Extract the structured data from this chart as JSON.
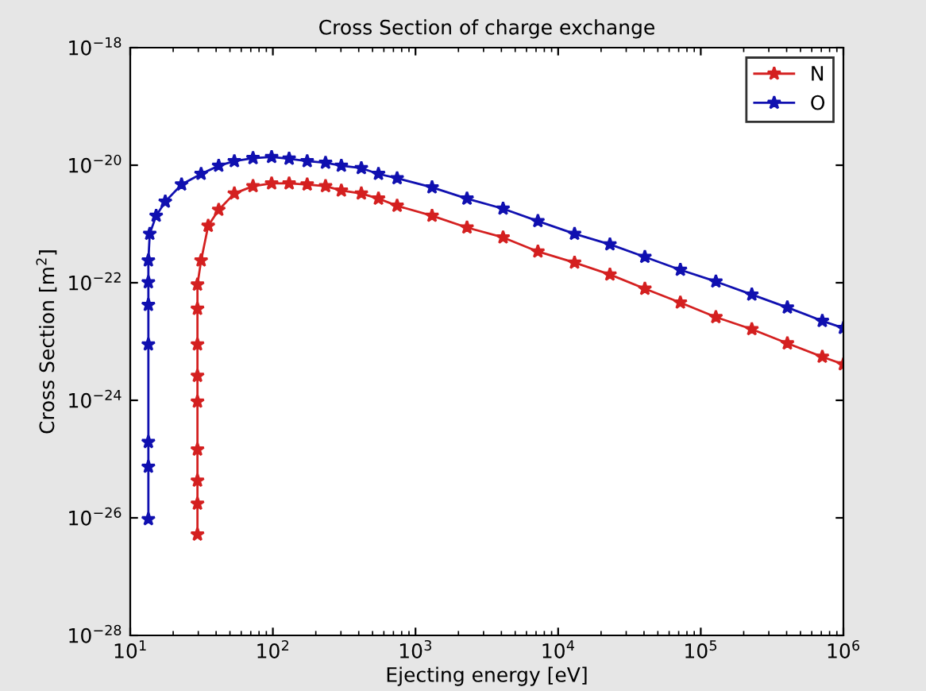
{
  "chart_data": {
    "type": "line",
    "title": "Cross Section of charge exchange",
    "xlabel": "Ejecting energy [eV]",
    "ylabel": "Cross Section [m$^{2}$]",
    "log": "xy",
    "grid": false,
    "legend": "top right",
    "marker": "star",
    "line_style": "solid",
    "xlim": [
      10,
      1000000
    ],
    "xticks": [
      {
        "value": 10,
        "label": "10$^{1}$"
      },
      {
        "value": 100,
        "label": "10$^{2}$"
      },
      {
        "value": 1000,
        "label": "10$^{3}$"
      },
      {
        "value": 10000,
        "label": "10$^{4}$"
      },
      {
        "value": 100000,
        "label": "10$^{5}$"
      },
      {
        "value": 1000000,
        "label": "10$^{6}$"
      }
    ],
    "ylim": [
      1e-28,
      1e-18
    ],
    "yticks": [
      {
        "value": 1e-28,
        "label": "10$^{−28}$"
      },
      {
        "value": 1e-26,
        "label": "10$^{−26}$"
      },
      {
        "value": 1e-24,
        "label": "10$^{−24}$"
      },
      {
        "value": 1e-22,
        "label": "10$^{−22}$"
      },
      {
        "value": 1e-20,
        "label": "10$^{−20}$"
      },
      {
        "value": 1e-18,
        "label": "10$^{−18}$"
      }
    ],
    "series": [
      {
        "name": "N",
        "color": "#d42020",
        "x": [
          29.6,
          29.6,
          29.6,
          29.6,
          29.6,
          29.6,
          29.6,
          29.6,
          29.6,
          31.4,
          35.2,
          41.7,
          53.7,
          72.6,
          98,
          130,
          174,
          234,
          302,
          417,
          550,
          743,
          1306,
          2296,
          4111,
          7211,
          13030,
          23070,
          40550,
          71940,
          127600,
          228000,
          404600,
          711200,
          1000000
        ],
        "values": [
          5.2e-27,
          1.74e-26,
          4.3e-26,
          1.45e-25,
          9.5e-25,
          2.6e-24,
          8.9e-24,
          3.6e-23,
          9.3e-23,
          2.4e-22,
          9.3e-22,
          1.74e-21,
          3.3e-21,
          4.4e-21,
          4.9e-21,
          4.9e-21,
          4.7e-21,
          4.4e-21,
          3.7e-21,
          3.3e-21,
          2.7e-21,
          2.04e-21,
          1.38e-21,
          8.7e-22,
          5.9e-22,
          3.4e-22,
          2.2e-22,
          1.38e-22,
          7.9e-23,
          4.6e-23,
          2.6e-23,
          1.62e-23,
          9.3e-24,
          5.5e-24,
          4.1e-24
        ]
      },
      {
        "name": "O",
        "color": "#1010b0",
        "x": [
          13.4,
          13.4,
          13.4,
          13.4,
          13.4,
          13.4,
          13.4,
          13.7,
          15.2,
          17.6,
          22.9,
          31.4,
          41.7,
          53.7,
          72.6,
          98,
          130,
          174,
          234,
          302,
          417,
          550,
          743,
          1306,
          2296,
          4111,
          7211,
          13030,
          23070,
          40550,
          71940,
          127600,
          228000,
          404600,
          711200,
          1000000
        ],
        "values": [
          9.5e-27,
          7.4e-26,
          1.95e-25,
          8.9e-24,
          4.2e-23,
          1.02e-22,
          2.4e-22,
          6.8e-22,
          1.38e-21,
          2.4e-21,
          4.7e-21,
          7.1e-21,
          9.8e-21,
          1.17e-20,
          1.32e-20,
          1.38e-20,
          1.29e-20,
          1.17e-20,
          1.1e-20,
          9.8e-21,
          8.9e-21,
          7.1e-21,
          6e-21,
          4.2e-21,
          2.7e-21,
          1.82e-21,
          1.12e-21,
          6.8e-22,
          4.5e-22,
          2.75e-22,
          1.66e-22,
          1.05e-22,
          6.3e-23,
          3.8e-23,
          2.24e-23,
          1.7e-23
        ]
      }
    ]
  }
}
